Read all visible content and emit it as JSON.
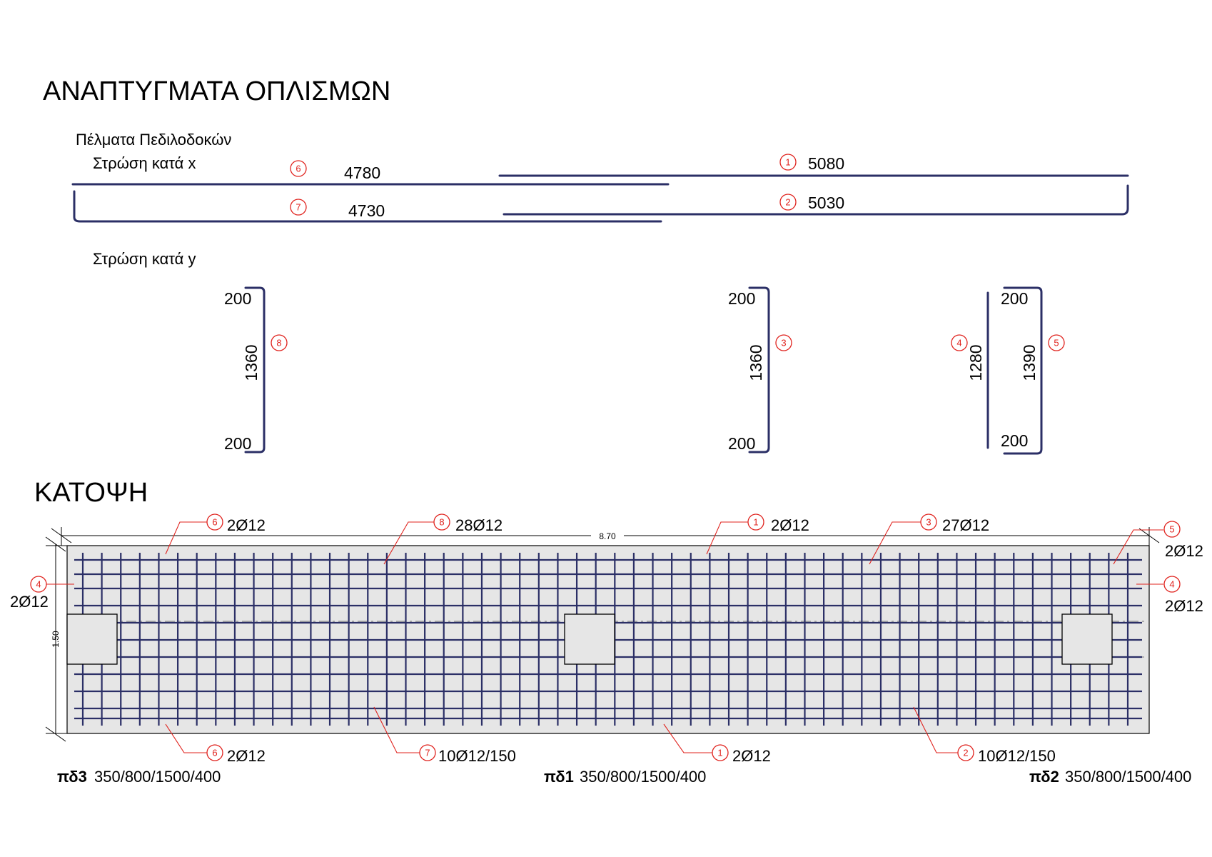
{
  "titles": {
    "main": "ΑΝΑΠΤΥΓΜΑΤΑ ΟΠΛΙΣΜΩΝ",
    "subtitle": "Πέλματα Πεδιλοδοκών",
    "layer_x": "Στρώση κατά x",
    "layer_y": "Στρώση κατά y",
    "plan": "ΚΑΤΟΨΗ"
  },
  "bars_x": [
    {
      "mark": "6",
      "length": "4780"
    },
    {
      "mark": "1",
      "length": "5080"
    },
    {
      "mark": "7",
      "length": "4730"
    },
    {
      "mark": "2",
      "length": "5030"
    }
  ],
  "bars_y": [
    {
      "mark": "8",
      "top": "200",
      "middle": "1360",
      "bottom": "200"
    },
    {
      "mark": "3",
      "top": "200",
      "middle": "1360",
      "bottom": "200"
    },
    {
      "mark": "4",
      "middle": "1280"
    },
    {
      "mark": "5",
      "top": "200",
      "middle": "1390",
      "bottom": "200"
    }
  ],
  "plan": {
    "dim_length": "8.70",
    "dim_width": "1.50",
    "callouts_top": [
      {
        "mark": "6",
        "text": "2Ø12"
      },
      {
        "mark": "8",
        "text": "28Ø12"
      },
      {
        "mark": "1",
        "text": "2Ø12"
      },
      {
        "mark": "3",
        "text": "27Ø12"
      },
      {
        "mark": "5",
        "text": "2Ø12"
      }
    ],
    "callouts_side": [
      {
        "mark": "4",
        "text": "2Ø12"
      },
      {
        "mark": "4",
        "text": "2Ø12"
      }
    ],
    "callouts_bottom": [
      {
        "mark": "6",
        "text": "2Ø12"
      },
      {
        "mark": "7",
        "text": "10Ø12/150"
      },
      {
        "mark": "1",
        "text": "2Ø12"
      },
      {
        "mark": "2",
        "text": "10Ø12/150"
      }
    ],
    "footings": [
      {
        "name": "πδ3",
        "dims": "350/800/1500/400"
      },
      {
        "name": "πδ1",
        "dims": "350/800/1500/400"
      },
      {
        "name": "πδ2",
        "dims": "350/800/1500/400"
      }
    ]
  },
  "colors": {
    "rebar": "#2b2f66",
    "marker": "#e0231e",
    "slab": "#e6e6e6"
  }
}
